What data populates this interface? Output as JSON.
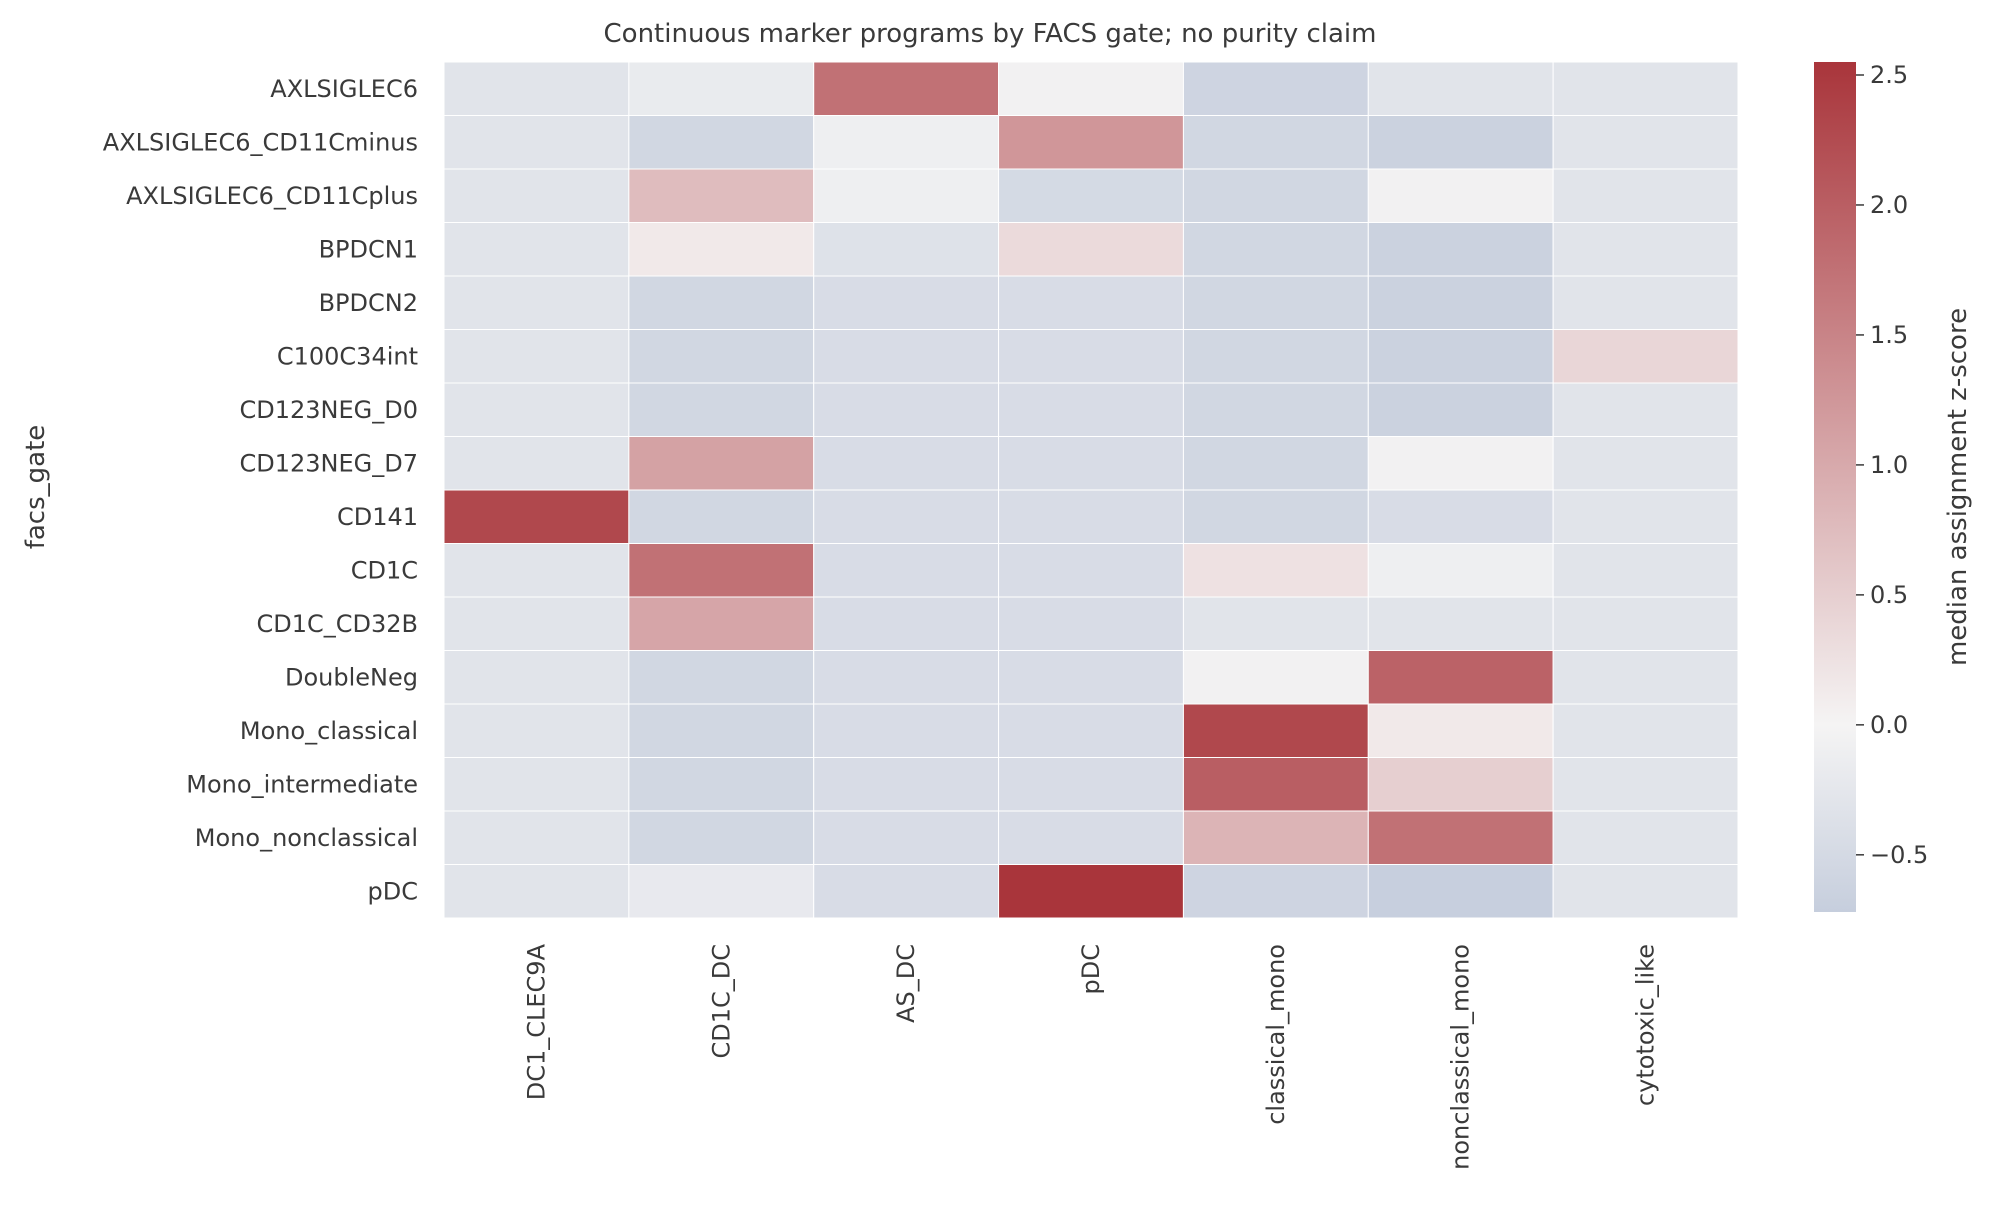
{
  "chart_data": {
    "type": "heatmap",
    "title": "Continuous marker programs by FACS gate; no purity claim",
    "ylabel": "facs_gate",
    "xlabel": "",
    "columns": [
      "DC1_CLEC9A",
      "CD1C_DC",
      "AS_DC",
      "pDC",
      "classical_mono",
      "nonclassical_mono",
      "cytotoxic_like"
    ],
    "rows": [
      "AXLSIGLEC6",
      "AXLSIGLEC6_CD11Cminus",
      "AXLSIGLEC6_CD11Cplus",
      "BPDCN1",
      "BPDCN2",
      "C100C34int",
      "CD123NEG_D0",
      "CD123NEG_D7",
      "CD141",
      "CD1C",
      "CD1C_CD32B",
      "DoubleNeg",
      "Mono_classical",
      "Mono_intermediate",
      "Mono_nonclassical",
      "pDC"
    ],
    "values": [
      [
        -0.3,
        -0.18,
        1.75,
        -0.05,
        -0.6,
        -0.3,
        -0.3
      ],
      [
        -0.3,
        -0.55,
        -0.1,
        1.25,
        -0.55,
        -0.65,
        -0.3
      ],
      [
        -0.3,
        0.75,
        -0.1,
        -0.5,
        -0.55,
        -0.05,
        -0.3
      ],
      [
        -0.3,
        0.15,
        -0.35,
        0.35,
        -0.55,
        -0.65,
        -0.3
      ],
      [
        -0.3,
        -0.55,
        -0.45,
        -0.45,
        -0.55,
        -0.65,
        -0.3
      ],
      [
        -0.3,
        -0.55,
        -0.45,
        -0.45,
        -0.55,
        -0.65,
        0.4
      ],
      [
        -0.3,
        -0.55,
        -0.45,
        -0.45,
        -0.55,
        -0.65,
        -0.3
      ],
      [
        -0.3,
        1.1,
        -0.45,
        -0.45,
        -0.55,
        -0.05,
        -0.3
      ],
      [
        2.3,
        -0.55,
        -0.45,
        -0.45,
        -0.55,
        -0.45,
        -0.3
      ],
      [
        -0.3,
        1.75,
        -0.45,
        -0.45,
        0.25,
        -0.1,
        -0.3
      ],
      [
        -0.3,
        1.05,
        -0.45,
        -0.45,
        -0.3,
        -0.3,
        -0.3
      ],
      [
        -0.3,
        -0.55,
        -0.45,
        -0.45,
        -0.05,
        1.95,
        -0.3
      ],
      [
        -0.3,
        -0.55,
        -0.45,
        -0.45,
        2.3,
        0.15,
        -0.3
      ],
      [
        -0.3,
        -0.55,
        -0.45,
        -0.45,
        2.0,
        0.5,
        -0.3
      ],
      [
        -0.3,
        -0.55,
        -0.45,
        -0.45,
        0.85,
        1.75,
        -0.3
      ],
      [
        -0.3,
        -0.2,
        -0.45,
        2.55,
        -0.6,
        -0.7,
        -0.3
      ]
    ],
    "colorbar": {
      "label": "median assignment z-score",
      "vmin": -0.72,
      "vmax": 2.55,
      "ticks": [
        2.5,
        2.0,
        1.5,
        1.0,
        0.5,
        0.0,
        -0.5
      ],
      "tick_labels": [
        "2.5",
        "2.0",
        "1.5",
        "1.0",
        "0.5",
        "0.0",
        "−0.5"
      ],
      "color_low": "#c6cedd",
      "color_mid": "#f5f4f4",
      "color_high": "#a9353b"
    }
  }
}
